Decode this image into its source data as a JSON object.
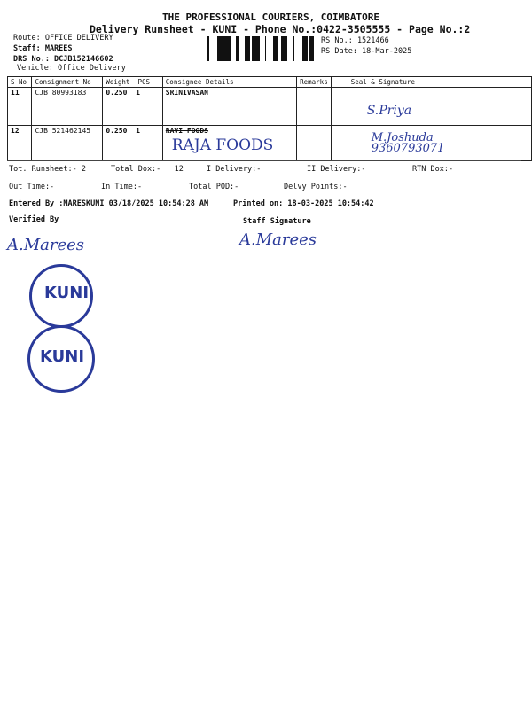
{
  "header": {
    "company": "THE PROFESSIONAL COURIERS, COIMBATORE",
    "title": "Delivery Runsheet - KUNI - Phone No.:0422-3505555 - Page No.:2",
    "route": "Route: OFFICE DELIVERY",
    "staff": "Staff: MAREES",
    "drs_no": "DRS No.: DCJB152146602",
    "vehicle": "Vehicle: Office Delivery",
    "rs_no": "RS No.: 1521466",
    "rs_date": "RS Date: 18-Mar-2025"
  },
  "table": {
    "columns": [
      "S No",
      "Consignment No",
      "Weight",
      "PCS",
      "Consignee Details",
      "Remarks",
      "Seal & Signature"
    ],
    "rows": [
      {
        "sno": "11",
        "consignment": "CJB 80993183",
        "weight": "0.250",
        "pcs": "1",
        "consignee": "SRINIVASAN",
        "consignee_handwritten": "",
        "remarks": "",
        "signature": "S.Priya"
      },
      {
        "sno": "12",
        "consignment": "CJB 521462145",
        "weight": "0.250",
        "pcs": "1",
        "consignee": "RAVI FOODS",
        "consignee_handwritten": "RAJA FOODS",
        "remarks": "",
        "signature": "M.Joshuda 9360793071"
      }
    ]
  },
  "summary": {
    "tot_runsheet": "Tot. Runsheet:- 2",
    "total_dox": "Total Dox:-   12",
    "i_delivery": "I Delivery:-",
    "ii_delivery": "II Delivery:-",
    "rtn_dox": "RTN Dox:-",
    "out_time": "Out Time:-",
    "in_time": "In Time:-",
    "total_pod": "Total POD:-",
    "delvy_points": "Delvy Points:-",
    "entered_by": "Entered By :MARESKUNI 03/18/2025 10:54:28 AM",
    "printed_on": "Printed on: 18-03-2025 10:54:42",
    "verified_by": "Verified By",
    "staff_signature": "Staff Signature"
  },
  "stamps": [
    "KUNI",
    "KUNI"
  ],
  "signatures": {
    "verified": "A.Marees",
    "staff": "A.Marees"
  },
  "colors": {
    "ink": "#2a3a9a",
    "text": "#111111"
  }
}
